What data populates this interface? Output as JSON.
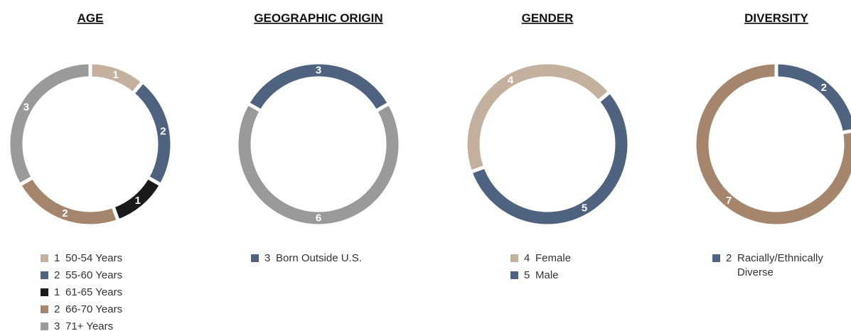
{
  "chart_data": [
    {
      "type": "donut",
      "title": "AGE",
      "categories": [
        "50-54 Years",
        "55-60 Years",
        "61-65 Years",
        "66-70 Years",
        "71+ Years"
      ],
      "values": [
        1,
        2,
        1,
        2,
        3
      ],
      "colors": [
        "#c4b09f",
        "#4f6280",
        "#1a1a1a",
        "#a5866d",
        "#9a9a9a"
      ]
    },
    {
      "type": "donut",
      "title": "GEOGRAPHIC ORIGIN",
      "categories": [
        "Born Outside U.S.",
        null
      ],
      "values": [
        3,
        6
      ],
      "colors": [
        "#4f6280",
        "#9a9a9a"
      ]
    },
    {
      "type": "donut",
      "title": "GENDER",
      "categories": [
        "Female",
        "Male"
      ],
      "values": [
        4,
        5
      ],
      "colors": [
        "#c4b09f",
        "#4f6280"
      ]
    },
    {
      "type": "donut",
      "title": "DIVERSITY",
      "categories": [
        "Racially/Ethnically Diverse",
        null
      ],
      "values": [
        2,
        7
      ],
      "colors": [
        "#4f6280",
        "#a5866d"
      ]
    }
  ]
}
